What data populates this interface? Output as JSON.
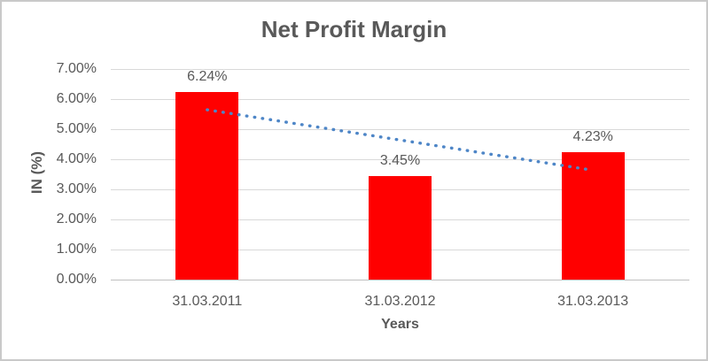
{
  "chart_data": {
    "type": "bar",
    "title": "Net Profit Margin",
    "xlabel": "Years",
    "ylabel": "IN (%)",
    "categories": [
      "31.03.2011",
      "31.03.2012",
      "31.03.2013"
    ],
    "values": [
      6.24,
      3.45,
      4.23
    ],
    "data_labels": [
      "6.24%",
      "3.45%",
      "4.23%"
    ],
    "ylim": [
      0,
      7
    ],
    "ytick_step": 1,
    "ytick_labels": [
      "0.00%",
      "1.00%",
      "2.00%",
      "3.00%",
      "4.00%",
      "5.00%",
      "6.00%",
      "7.00%"
    ],
    "grid": true,
    "legend": "none",
    "bar_color": "#FF0000",
    "trendline": {
      "type": "linear",
      "style": "dotted",
      "color": "#4E86C7",
      "start_value": 5.645,
      "end_value": 3.635
    }
  },
  "colors": {
    "title_text": "#595959",
    "axis_text": "#595959",
    "gridline": "#D9D9D9",
    "axis_line": "#BFBFBF",
    "border": "#C9C9C9",
    "background": "#FFFFFF"
  }
}
